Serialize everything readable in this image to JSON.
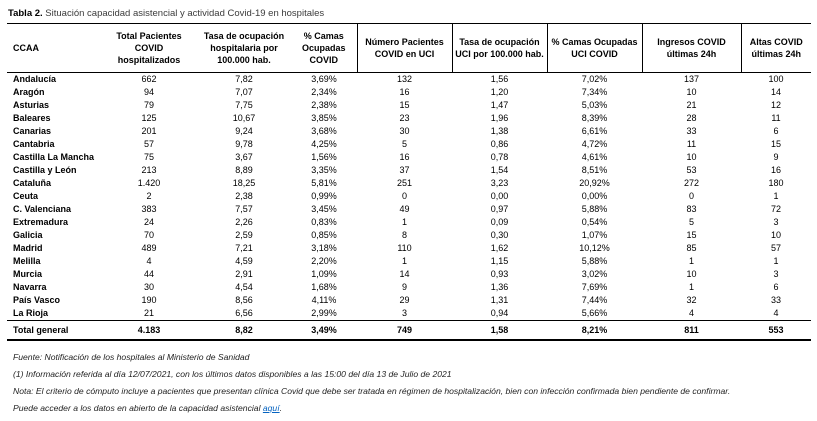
{
  "title": {
    "prefix": "Tabla 2.",
    "text": " Situación capacidad asistencial y actividad Covid-19 en hospitales"
  },
  "table": {
    "columns": [
      "CCAA",
      "Total Pacientes COVID hospitalizados",
      "Tasa de ocupación hospitalaria por 100.000 hab.",
      "% Camas Ocupadas COVID",
      "Número Pacientes COVID en UCI",
      "Tasa de ocupación UCI por 100.000 hab.",
      "% Camas Ocupadas UCI COVID",
      "Ingresos COVID últimas 24h",
      "Altas COVID últimas 24h"
    ],
    "rows": [
      {
        "name": "Andalucía",
        "values": [
          "662",
          "7,82",
          "3,69%",
          "132",
          "1,56",
          "7,02%",
          "137",
          "100"
        ]
      },
      {
        "name": "Aragón",
        "values": [
          "94",
          "7,07",
          "2,34%",
          "16",
          "1,20",
          "7,34%",
          "10",
          "14"
        ]
      },
      {
        "name": "Asturias",
        "values": [
          "79",
          "7,75",
          "2,38%",
          "15",
          "1,47",
          "5,03%",
          "21",
          "12"
        ]
      },
      {
        "name": "Baleares",
        "values": [
          "125",
          "10,67",
          "3,85%",
          "23",
          "1,96",
          "8,39%",
          "28",
          "11"
        ]
      },
      {
        "name": "Canarias",
        "values": [
          "201",
          "9,24",
          "3,68%",
          "30",
          "1,38",
          "6,61%",
          "33",
          "6"
        ]
      },
      {
        "name": "Cantabria",
        "values": [
          "57",
          "9,78",
          "4,25%",
          "5",
          "0,86",
          "4,72%",
          "11",
          "15"
        ]
      },
      {
        "name": "Castilla La Mancha",
        "values": [
          "75",
          "3,67",
          "1,56%",
          "16",
          "0,78",
          "4,61%",
          "10",
          "9"
        ]
      },
      {
        "name": "Castilla y León",
        "values": [
          "213",
          "8,89",
          "3,35%",
          "37",
          "1,54",
          "8,51%",
          "53",
          "16"
        ]
      },
      {
        "name": "Cataluña",
        "values": [
          "1.420",
          "18,25",
          "5,81%",
          "251",
          "3,23",
          "20,92%",
          "272",
          "180"
        ]
      },
      {
        "name": "Ceuta",
        "values": [
          "2",
          "2,38",
          "0,99%",
          "0",
          "0,00",
          "0,00%",
          "0",
          "1"
        ]
      },
      {
        "name": "C. Valenciana",
        "values": [
          "383",
          "7,57",
          "3,45%",
          "49",
          "0,97",
          "5,88%",
          "83",
          "72"
        ]
      },
      {
        "name": "Extremadura",
        "values": [
          "24",
          "2,26",
          "0,83%",
          "1",
          "0,09",
          "0,54%",
          "5",
          "3"
        ]
      },
      {
        "name": "Galicia",
        "values": [
          "70",
          "2,59",
          "0,85%",
          "8",
          "0,30",
          "1,07%",
          "15",
          "10"
        ]
      },
      {
        "name": "Madrid",
        "values": [
          "489",
          "7,21",
          "3,18%",
          "110",
          "1,62",
          "10,12%",
          "85",
          "57"
        ]
      },
      {
        "name": "Melilla",
        "values": [
          "4",
          "4,59",
          "2,20%",
          "1",
          "1,15",
          "5,88%",
          "1",
          "1"
        ]
      },
      {
        "name": "Murcia",
        "values": [
          "44",
          "2,91",
          "1,09%",
          "14",
          "0,93",
          "3,02%",
          "10",
          "3"
        ]
      },
      {
        "name": "Navarra",
        "values": [
          "30",
          "4,54",
          "1,68%",
          "9",
          "1,36",
          "7,69%",
          "1",
          "6"
        ]
      },
      {
        "name": "País Vasco",
        "values": [
          "190",
          "8,56",
          "4,11%",
          "29",
          "1,31",
          "7,44%",
          "32",
          "33"
        ]
      },
      {
        "name": "La Rioja",
        "values": [
          "21",
          "6,56",
          "2,99%",
          "3",
          "0,94",
          "5,66%",
          "4",
          "4"
        ]
      }
    ],
    "total": {
      "name": "Total general",
      "values": [
        "4.183",
        "8,82",
        "3,49%",
        "749",
        "1,58",
        "8,21%",
        "811",
        "553"
      ]
    }
  },
  "footnotes": {
    "fuente": "Fuente: Notificación de los hospitales al Ministerio de Sanidad",
    "info": "(1) Información referida al día 12/07/2021, con los últimos datos disponibles a las 15:00 del día 13 de Julio de 2021",
    "nota": "Nota: El criterio de cómputo incluye a pacientes que presentan clínica Covid que debe ser tratada en régimen de hospitalización, bien con infección confirmada bien pendiente de confirmar.",
    "access_prefix": "Puede acceder a los datos en abierto de la capacidad asistencial ",
    "access_link": "aquí",
    "access_suffix": "."
  },
  "colors": {
    "link": "#0563c1",
    "rule": "#000000"
  }
}
